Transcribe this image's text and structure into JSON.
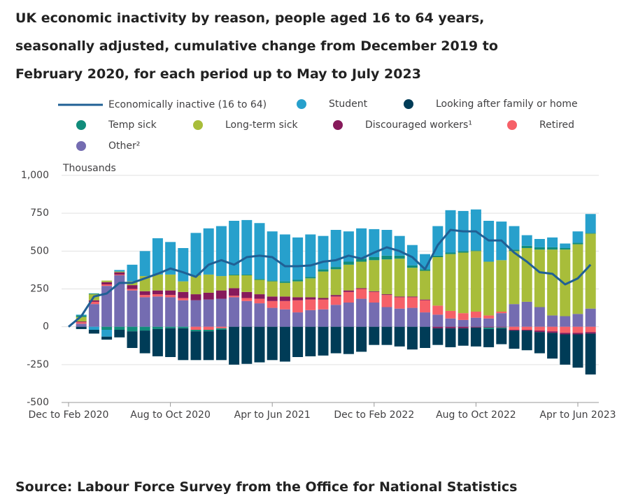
{
  "chart_data": {
    "type": "bar",
    "stacked": true,
    "title": "UK economic inactivity by reason, people aged 16 to 64 years, seasonally adjusted, cumulative change from December 2019 to February 2020, for each period up to May to July 2023",
    "source": "Source: Labour Force Survey from the Office for National Statistics",
    "y_label": "Thousands",
    "categories": [
      "Dec to Feb 2020",
      null,
      null,
      null,
      null,
      null,
      null,
      null,
      "Aug to Oct 2020",
      null,
      null,
      null,
      null,
      null,
      null,
      null,
      "Apr to Jun 2021",
      null,
      null,
      null,
      null,
      null,
      null,
      null,
      "Dec to Feb 2022",
      null,
      null,
      null,
      null,
      null,
      null,
      null,
      "Aug to Oct 2022",
      null,
      null,
      null,
      null,
      null,
      null,
      null,
      "Apr to Jun 2023",
      null
    ],
    "ylim": [
      -500,
      1000
    ],
    "yticks": [
      -500,
      -250,
      0,
      250,
      500,
      750,
      {
        "value": 1000,
        "label": "1,000"
      }
    ],
    "grid": true,
    "series": [
      {
        "name": "Economically inactive (16 to 64)",
        "type": "line",
        "color": "#206095",
        "values": [
          0,
          70,
          200,
          220,
          290,
          290,
          320,
          350,
          385,
          360,
          330,
          410,
          440,
          410,
          460,
          470,
          460,
          400,
          400,
          405,
          430,
          440,
          470,
          450,
          490,
          525,
          500,
          460,
          380,
          540,
          640,
          630,
          630,
          570,
          570,
          490,
          430,
          360,
          350,
          280,
          320,
          410
        ]
      },
      {
        "name": "Student",
        "type": "bar",
        "color": "#27a0cc",
        "values": [
          0,
          5,
          -20,
          -45,
          10,
          110,
          165,
          240,
          215,
          220,
          280,
          305,
          330,
          355,
          360,
          370,
          325,
          310,
          280,
          280,
          220,
          245,
          200,
          200,
          185,
          170,
          130,
          135,
          100,
          195,
          280,
          265,
          270,
          270,
          255,
          155,
          70,
          55,
          65,
          30,
          75,
          125
        ]
      },
      {
        "name": "Looking after family or home",
        "type": "bar",
        "color": "#003c57",
        "values": [
          0,
          -15,
          -25,
          -20,
          -50,
          -110,
          -150,
          -180,
          -190,
          -210,
          -190,
          -190,
          -200,
          -250,
          -245,
          -235,
          -220,
          -230,
          -200,
          -195,
          -190,
          -175,
          -180,
          -165,
          -120,
          -120,
          -130,
          -150,
          -140,
          -110,
          -125,
          -115,
          -125,
          -120,
          -105,
          -120,
          -130,
          -140,
          -170,
          -200,
          -220,
          -270
        ]
      },
      {
        "name": "Temp sick",
        "type": "bar",
        "color": "#118c7b",
        "values": [
          0,
          10,
          5,
          -20,
          -20,
          -30,
          -25,
          -15,
          -10,
          -10,
          -10,
          -10,
          -10,
          5,
          5,
          5,
          5,
          10,
          10,
          10,
          15,
          15,
          20,
          20,
          20,
          25,
          20,
          15,
          10,
          10,
          10,
          10,
          5,
          -10,
          -5,
          10,
          15,
          15,
          15,
          10,
          10,
          5
        ]
      },
      {
        "name": "Long-term sick",
        "type": "bar",
        "color": "#a8bd3a",
        "values": [
          0,
          30,
          40,
          10,
          5,
          25,
          100,
          105,
          105,
          70,
          125,
          120,
          95,
          85,
          110,
          95,
          100,
          90,
          105,
          125,
          175,
          170,
          170,
          175,
          205,
          230,
          250,
          190,
          190,
          320,
          375,
          400,
          400,
          355,
          340,
          350,
          355,
          380,
          435,
          440,
          460,
          495
        ]
      },
      {
        "name": "Discouraged workers¹",
        "type": "bar",
        "color": "#871a5b",
        "values": [
          0,
          5,
          10,
          15,
          15,
          25,
          25,
          25,
          30,
          40,
          40,
          45,
          55,
          50,
          40,
          30,
          30,
          30,
          20,
          15,
          10,
          10,
          10,
          5,
          5,
          5,
          5,
          5,
          5,
          -10,
          -10,
          -10,
          -5,
          -5,
          -5,
          -5,
          -5,
          -10,
          -10,
          -10,
          -10,
          -10
        ]
      },
      {
        "name": "Retired",
        "type": "bar",
        "color": "#f66068",
        "values": [
          0,
          10,
          15,
          10,
          5,
          10,
          15,
          15,
          15,
          15,
          -20,
          -20,
          -10,
          10,
          20,
          30,
          45,
          55,
          80,
          70,
          65,
          55,
          70,
          65,
          70,
          80,
          75,
          70,
          80,
          60,
          50,
          45,
          40,
          20,
          10,
          -20,
          -20,
          -25,
          -30,
          -40,
          -40,
          -35
        ]
      },
      {
        "name": "Other²",
        "type": "bar",
        "color": "#746cb1",
        "values": [
          0,
          20,
          150,
          270,
          340,
          240,
          195,
          200,
          195,
          175,
          175,
          180,
          185,
          195,
          170,
          155,
          125,
          115,
          95,
          110,
          115,
          145,
          160,
          185,
          160,
          130,
          120,
          125,
          95,
          80,
          55,
          45,
          60,
          55,
          90,
          150,
          165,
          130,
          75,
          70,
          85,
          120
        ]
      }
    ]
  }
}
